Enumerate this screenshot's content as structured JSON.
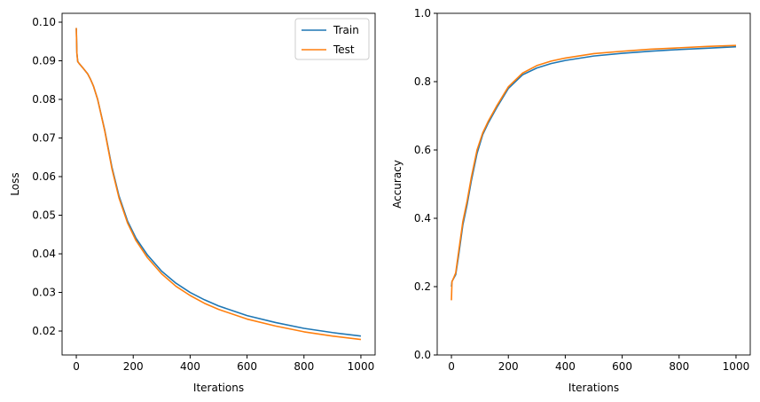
{
  "chart_data": [
    {
      "type": "line",
      "xlabel": "Iterations",
      "ylabel": "Loss",
      "xlim": [
        -50,
        1050
      ],
      "ylim": [
        0.0138,
        0.1023
      ],
      "xticks": [
        0,
        200,
        400,
        600,
        800,
        1000
      ],
      "yticks": [
        0.02,
        0.03,
        0.04,
        0.05,
        0.06,
        0.07,
        0.08,
        0.09,
        0.1
      ],
      "ytick_labels": [
        "0.02",
        "0.03",
        "0.04",
        "0.05",
        "0.06",
        "0.07",
        "0.08",
        "0.09",
        "0.10"
      ],
      "legend": "top-right",
      "grid": false,
      "x": [
        0,
        2,
        5,
        10,
        25,
        40,
        50,
        60,
        75,
        100,
        125,
        150,
        180,
        210,
        250,
        300,
        350,
        400,
        450,
        500,
        600,
        700,
        800,
        900,
        1000
      ],
      "series": [
        {
          "name": "Train",
          "color": "#1f77b4",
          "values": [
            0.0985,
            0.092,
            0.0898,
            0.0893,
            0.088,
            0.0866,
            0.0852,
            0.0835,
            0.08,
            0.072,
            0.0625,
            0.055,
            0.0485,
            0.044,
            0.0397,
            0.0355,
            0.0324,
            0.03,
            0.0281,
            0.0265,
            0.024,
            0.0222,
            0.0207,
            0.0196,
            0.0187
          ]
        },
        {
          "name": "Test",
          "color": "#ff7f0e",
          "values": [
            0.0985,
            0.092,
            0.0898,
            0.0893,
            0.088,
            0.0866,
            0.0852,
            0.0835,
            0.08,
            0.0718,
            0.0621,
            0.0545,
            0.048,
            0.0434,
            0.039,
            0.0348,
            0.0316,
            0.0292,
            0.0272,
            0.0256,
            0.0231,
            0.0213,
            0.0198,
            0.0187,
            0.0178
          ]
        }
      ]
    },
    {
      "type": "line",
      "xlabel": "Iterations",
      "ylabel": "Accuracy",
      "xlim": [
        -50,
        1050
      ],
      "ylim": [
        0,
        1.0
      ],
      "xticks": [
        0,
        200,
        400,
        600,
        800,
        1000
      ],
      "yticks": [
        0,
        0.2,
        0.4,
        0.6,
        0.8,
        1.0
      ],
      "ytick_labels": [
        "0.0",
        "0.2",
        "0.4",
        "0.6",
        "0.8",
        "1.0"
      ],
      "grid": false,
      "x": [
        0,
        2,
        5,
        15,
        25,
        40,
        55,
        70,
        90,
        110,
        130,
        160,
        200,
        250,
        300,
        350,
        400,
        500,
        600,
        700,
        800,
        900,
        1000
      ],
      "series": [
        {
          "name": "Train",
          "color": "#1f77b4",
          "values": [
            0.2,
            0.215,
            0.22,
            0.235,
            0.29,
            0.38,
            0.44,
            0.51,
            0.59,
            0.645,
            0.68,
            0.725,
            0.78,
            0.82,
            0.84,
            0.853,
            0.862,
            0.875,
            0.883,
            0.889,
            0.894,
            0.898,
            0.902
          ]
        },
        {
          "name": "Test",
          "color": "#ff7f0e",
          "values": [
            0.16,
            0.215,
            0.22,
            0.24,
            0.3,
            0.39,
            0.45,
            0.52,
            0.6,
            0.65,
            0.685,
            0.73,
            0.785,
            0.825,
            0.847,
            0.86,
            0.869,
            0.882,
            0.889,
            0.895,
            0.899,
            0.903,
            0.906
          ]
        }
      ]
    }
  ]
}
